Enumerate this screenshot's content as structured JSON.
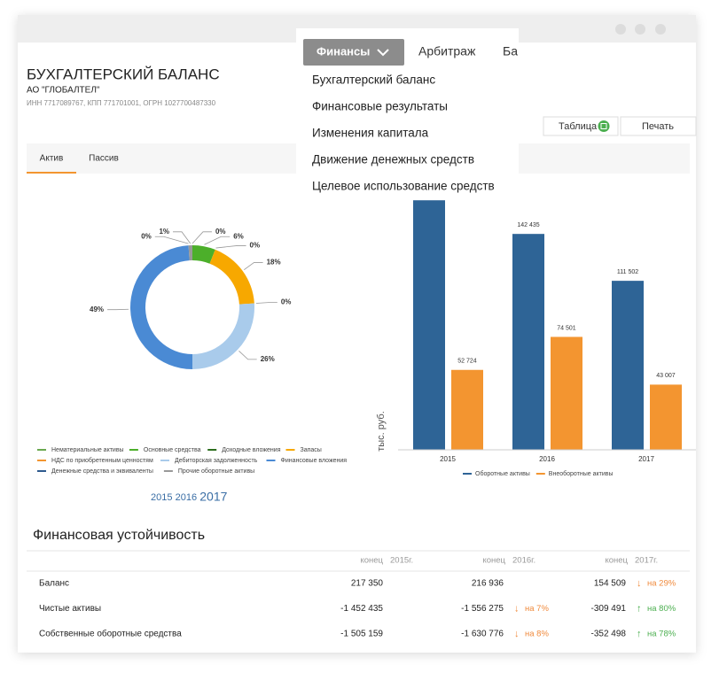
{
  "header": {
    "title": "БУХГАЛТЕРСКИЙ БАЛАНС",
    "company": "АО \"ГЛОБАЛТЕЛ\"",
    "ids": "ИНН 7717089767, КПП 771701001, ОГРН 1027700487330"
  },
  "buttons": [
    "Таблица",
    "Печать"
  ],
  "tabs": [
    "Актив",
    "Пассив"
  ],
  "nav": {
    "items": [
      "Финансы",
      "Арбитраж",
      "Ба"
    ],
    "menu": [
      "Бухгалтерский баланс",
      "Финансовые результаты",
      "Изменения капитала",
      "Движение денежных средств",
      "Целевое использование средств"
    ]
  },
  "years": {
    "items": [
      "2015",
      "2016",
      "2017"
    ],
    "selected": 2
  },
  "chart_data": [
    {
      "type": "pie",
      "donut": true,
      "categories": [
        "Нематериальные активы",
        "Основные средства",
        "Доходные вложения",
        "Запасы",
        "НДС по приобретенным ценностям",
        "Дебиторская задолженность",
        "Финансовые вложения",
        "Денежные средства и эквиваленты",
        "Прочие оборотные активы"
      ],
      "values": [
        0,
        6,
        0,
        18,
        0,
        26,
        49,
        0,
        1
      ],
      "value_labels": [
        "0%",
        "6%",
        "0%",
        "18%",
        "0%",
        "26%",
        "49%",
        "0%",
        "1%"
      ],
      "colors": [
        "#6aa84f",
        "#4caf2a",
        "#2d6e1e",
        "#f7a800",
        "#f39530",
        "#a9cbeb",
        "#4a8ad4",
        "#2e5a8e",
        "#999999"
      ]
    },
    {
      "type": "bar",
      "ylabel": "тыс. руб.",
      "categories": [
        "2015",
        "2016",
        "2017"
      ],
      "ylim": [
        0,
        170000
      ],
      "series": [
        {
          "name": "Оборотные активы",
          "color": "#2e6496",
          "values": [
            164626,
            142435,
            111502
          ],
          "value_labels": [
            null,
            "142 435",
            "111 502"
          ]
        },
        {
          "name": "Внеоборотные активы",
          "color": "#f39530",
          "values": [
            52724,
            74501,
            43007
          ],
          "value_labels": [
            "52 724",
            "74 501",
            "43 007"
          ]
        }
      ]
    }
  ],
  "table": {
    "title": "Финансовая устойчивость",
    "header": [
      {
        "word": "конец",
        "year": "2015г."
      },
      {
        "word": "конец",
        "year": "2016г."
      },
      {
        "word": "конец",
        "year": "2017г."
      }
    ],
    "rows": [
      {
        "label": "Баланс",
        "cells": [
          {
            "value": "217 350"
          },
          {
            "value": "216 936"
          },
          {
            "value": "154 509",
            "arrow": "↓",
            "change": "на 29%",
            "trend": "down"
          }
        ]
      },
      {
        "label": "Чистые активы",
        "cells": [
          {
            "value": "-1 452 435"
          },
          {
            "value": "-1 556 275",
            "arrow": "↓",
            "change": "на 7%",
            "trend": "down"
          },
          {
            "value": "-309 491",
            "arrow": "↑",
            "change": "на 80%",
            "trend": "up"
          }
        ]
      },
      {
        "label": "Собственные оборотные средства",
        "cells": [
          {
            "value": "-1 505 159"
          },
          {
            "value": "-1 630 776",
            "arrow": "↓",
            "change": "на 8%",
            "trend": "down"
          },
          {
            "value": "-352 498",
            "arrow": "↑",
            "change": "на 78%",
            "trend": "up"
          }
        ]
      }
    ]
  }
}
